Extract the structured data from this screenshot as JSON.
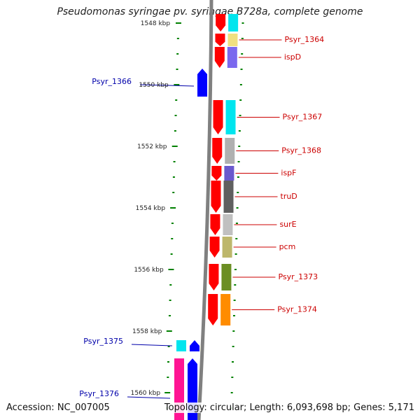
{
  "title": "Pseudomonas syringae pv. syringae B728a, complete genome",
  "footer": {
    "accession": "Accession: NC_007005",
    "topology": "Topology: circular; Length: 6,093,698 bp; Genes: 5,171"
  },
  "colors": {
    "forward_strand": "#ff0000",
    "reverse_strand": "#0000ff",
    "label_right": "#cc0000",
    "label_left": "#0000aa",
    "ticks": "#008000",
    "backbone": "#808080"
  },
  "scale": {
    "unit": "kbp",
    "labels": [
      "1548 kbp",
      "1550 kbp",
      "1552 kbp",
      "1554 kbp",
      "1556 kbp",
      "1558 kbp",
      "1560 kbp"
    ]
  },
  "genes_right": [
    {
      "name": "Psyr_1364",
      "color": "#f0e080"
    },
    {
      "name": "ispD",
      "color": "#7b68ee"
    },
    {
      "name": "Psyr_1367",
      "color": "#00e5ee"
    },
    {
      "name": "Psyr_1368",
      "color": "#b0b0b0"
    },
    {
      "name": "ispF",
      "color": "#6a5acd"
    },
    {
      "name": "truD",
      "color": "#606060"
    },
    {
      "name": "surE",
      "color": "#c0c0c0"
    },
    {
      "name": "pcm",
      "color": "#bdb76b"
    },
    {
      "name": "Psyr_1373",
      "color": "#6b8e23"
    },
    {
      "name": "Psyr_1374",
      "color": "#ff8c00"
    }
  ],
  "genes_left": [
    {
      "name": "Psyr_1366",
      "color": "#0000ff"
    },
    {
      "name": "Psyr_1375",
      "color": "#00e5ee"
    },
    {
      "name": "Psyr_1376",
      "color": "#ff1493"
    }
  ]
}
